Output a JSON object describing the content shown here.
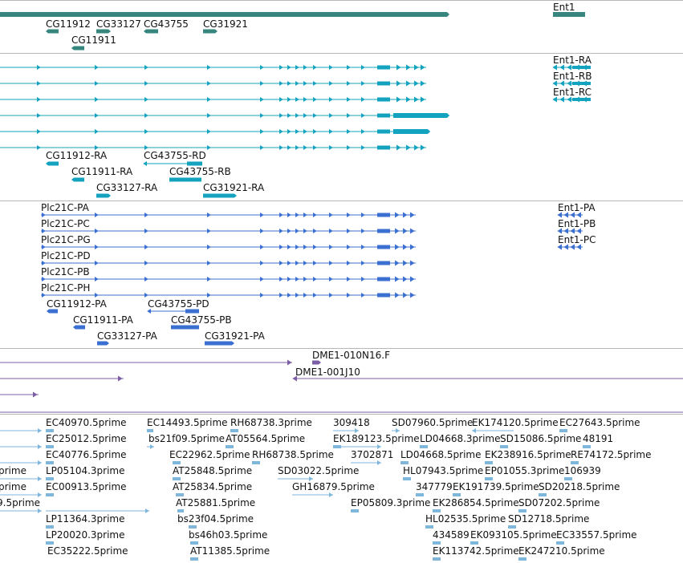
{
  "colors": {
    "gene": "#36857f",
    "transcript": "#13a3bf",
    "protein": "#3b6fd1",
    "clone": "#7b5ea5",
    "est": "#7fb6dc",
    "separator": "#b8b8b8"
  },
  "tracks": {
    "genes": {
      "labels": [
        "Ent1",
        "CG11912",
        "CG33127",
        "CG43755",
        "CG31921",
        "CG11911"
      ]
    },
    "transcripts": {
      "labels": [
        "Ent1-RA",
        "Ent1-RB",
        "Ent1-RC",
        "CG11912-RA",
        "CG43755-RD",
        "CG11911-RA",
        "CG43755-RB",
        "CG33127-RA",
        "CG31921-RA"
      ]
    },
    "proteins": {
      "labels": [
        "Plc21C-PA",
        "Plc21C-PC",
        "Plc21C-PG",
        "Plc21C-PD",
        "Plc21C-PB",
        "Plc21C-PH",
        "Ent1-PA",
        "Ent1-PB",
        "Ent1-PC",
        "CG11912-PA",
        "CG43755-PD",
        "CG11911-PA",
        "CG43755-PB",
        "CG33127-PA",
        "CG31921-PA"
      ]
    },
    "clones": {
      "labels": [
        "DME1-010N16.F",
        "DME1-001J10"
      ]
    },
    "ests": {
      "labels": [
        "EC40970.5prime",
        "EC14493.5prime",
        "RH68738.3prime",
        "309418",
        "SD07960.5prime",
        "EK174120.5prime",
        "EC27643.5prime",
        "EC25012.5prime",
        "bs21f09.5prime",
        "AT05564.5prime",
        "EK189123.5prime",
        "LD04668.3prime",
        "SD15086.5prime",
        "48191",
        "EC40776.5prime",
        "EC22962.5prime",
        "RH68738.5prime",
        "3702871",
        "LD04668.5prime",
        "EK238916.5prime",
        "RE74172.5prime",
        "prime",
        "LP05104.3prime",
        "AT25848.5prime",
        "SD03022.5prime",
        "HL07943.5prime",
        "EP01055.3prime",
        "106939",
        "prime",
        "EC00913.5prime",
        "AT25834.5prime",
        "GH16879.5prime",
        "347779",
        "EK191739.5prime",
        "SD20218.5prime",
        "9.5prime",
        "AT25881.5prime",
        "EP05809.3prime",
        "EK286854.5prime",
        "SD07202.5prime",
        "LP11364.3prime",
        "bs23f04.5prime",
        "HL02535.5prime",
        "SD12718.5prime",
        "LP20020.3prime",
        "bs46h03.5prime",
        "434589",
        "EK093105.5prime",
        "EC33557.5prime",
        "EC35222.5prime",
        "AT11385.5prime",
        "EK113742.5prime",
        "EK247210.5prime"
      ]
    }
  }
}
